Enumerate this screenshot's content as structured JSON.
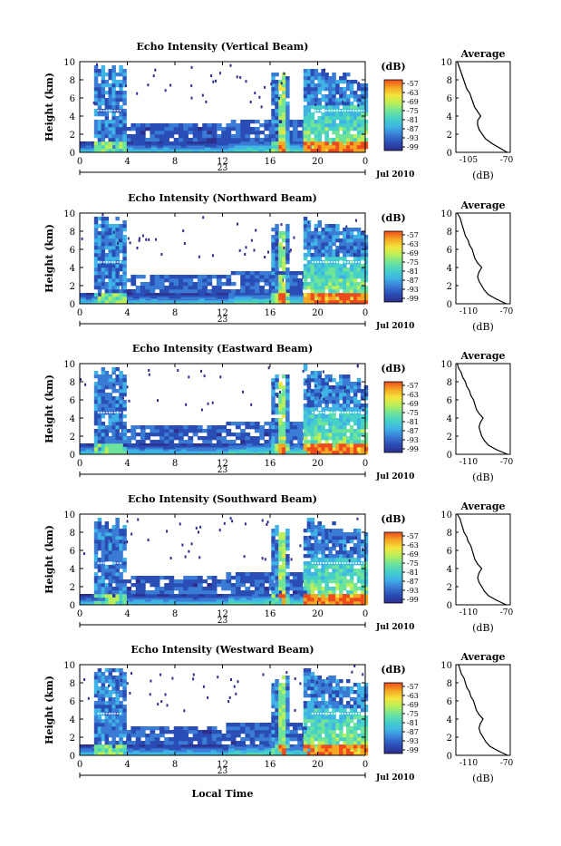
{
  "figure": {
    "month_year_label": "Jul 2010",
    "day_label": "23",
    "xlabel": "Local Time",
    "ylabel": "Height (km)",
    "average_title": "Average",
    "average_xlabel": "(dB)",
    "colorbar_label": "(dB)",
    "colorbar_ticks": [
      "-57",
      "-63",
      "-69",
      "-75",
      "-81",
      "-87",
      "-93",
      "-99"
    ],
    "colormap": [
      "#2e2e8c",
      "#2a4db5",
      "#3a7bd5",
      "#3fb3e6",
      "#46d0c8",
      "#6ee39a",
      "#b8ef5a",
      "#f4e43c",
      "#f5a623",
      "#ee4b1e"
    ]
  },
  "chart_data": [
    {
      "type": "heatmap",
      "title": "Echo Intensity (Vertical Beam)",
      "xlabel": "Local Time",
      "ylabel": "Height (km)",
      "xlim": [
        0,
        24
      ],
      "xticks": [
        "0",
        "4",
        "8",
        "12",
        "16",
        "20",
        "0"
      ],
      "ylim": [
        0,
        10
      ],
      "yticks": [
        "0",
        "2",
        "4",
        "6",
        "8",
        "10"
      ],
      "colorbar": {
        "label": "(dB)",
        "ticks": [
          -57,
          -63,
          -69,
          -75,
          -81,
          -87,
          -93,
          -99
        ]
      },
      "average_profile": {
        "title": "Average",
        "xlabel": "(dB)",
        "xlim": [
          -105,
          -70
        ],
        "xticks": [
          "-105",
          "-70"
        ],
        "height": [
          0,
          0.5,
          1,
          1.5,
          2,
          2.5,
          3,
          3.5,
          4,
          4.5,
          5,
          5.5,
          6,
          6.5,
          7,
          7.5,
          8,
          8.5,
          9,
          9.5,
          10
        ],
        "db": [
          -72,
          -77,
          -82,
          -86,
          -88,
          -90,
          -91,
          -91,
          -89,
          -91,
          -93,
          -94,
          -95,
          -96,
          -98,
          -99,
          -100,
          -101,
          -102,
          -103,
          -104
        ]
      }
    },
    {
      "type": "heatmap",
      "title": "Echo Intensity (Northward Beam)",
      "xlabel": "Local Time",
      "ylabel": "Height (km)",
      "xlim": [
        0,
        24
      ],
      "xticks": [
        "0",
        "4",
        "8",
        "12",
        "16",
        "20",
        "0"
      ],
      "ylim": [
        0,
        10
      ],
      "yticks": [
        "0",
        "2",
        "4",
        "6",
        "8",
        "10"
      ],
      "colorbar": {
        "label": "(dB)",
        "ticks": [
          -57,
          -63,
          -69,
          -75,
          -81,
          -87,
          -93,
          -99
        ]
      },
      "average_profile": {
        "title": "Average",
        "xlabel": "(dB)",
        "xlim": [
          -110,
          -70
        ],
        "xticks": [
          "-110",
          "-70"
        ],
        "height": [
          0,
          0.5,
          1,
          1.5,
          2,
          2.5,
          3,
          3.5,
          4,
          4.5,
          5,
          5.5,
          6,
          6.5,
          7,
          7.5,
          8,
          8.5,
          9,
          9.5,
          10
        ],
        "db": [
          -73,
          -80,
          -86,
          -89,
          -91,
          -93,
          -94,
          -93,
          -91,
          -94,
          -96,
          -97,
          -98,
          -100,
          -101,
          -103,
          -104,
          -105,
          -106,
          -107,
          -109
        ]
      }
    },
    {
      "type": "heatmap",
      "title": "Echo Intensity (Eastward Beam)",
      "xlabel": "Local Time",
      "ylabel": "Height (km)",
      "xlim": [
        0,
        24
      ],
      "xticks": [
        "0",
        "4",
        "8",
        "12",
        "16",
        "20",
        "0"
      ],
      "ylim": [
        0,
        10
      ],
      "yticks": [
        "0",
        "2",
        "4",
        "6",
        "8",
        "10"
      ],
      "colorbar": {
        "label": "(dB)",
        "ticks": [
          -57,
          -63,
          -69,
          -75,
          -81,
          -87,
          -93,
          -99
        ]
      },
      "average_profile": {
        "title": "Average",
        "xlabel": "(dB)",
        "xlim": [
          -110,
          -70
        ],
        "xticks": [
          "-110",
          "-70"
        ],
        "height": [
          0,
          0.5,
          1,
          1.5,
          2,
          2.5,
          3,
          3.5,
          4,
          4.5,
          5,
          5.5,
          6,
          6.5,
          7,
          7.5,
          8,
          8.5,
          9,
          9.5,
          10
        ],
        "db": [
          -72,
          -80,
          -86,
          -89,
          -91,
          -92,
          -93,
          -92,
          -90,
          -93,
          -95,
          -96,
          -97,
          -99,
          -100,
          -102,
          -103,
          -105,
          -106,
          -108,
          -109
        ]
      }
    },
    {
      "type": "heatmap",
      "title": "Echo Intensity (Southward Beam)",
      "xlabel": "Local Time",
      "ylabel": "Height (km)",
      "xlim": [
        0,
        24
      ],
      "xticks": [
        "0",
        "4",
        "8",
        "12",
        "16",
        "20",
        "0"
      ],
      "ylim": [
        0,
        10
      ],
      "yticks": [
        "0",
        "2",
        "4",
        "6",
        "8",
        "10"
      ],
      "colorbar": {
        "label": "(dB)",
        "ticks": [
          -57,
          -63,
          -69,
          -75,
          -81,
          -87,
          -93,
          -99
        ]
      },
      "average_profile": {
        "title": "Average",
        "xlabel": "(dB)",
        "xlim": [
          -110,
          -70
        ],
        "xticks": [
          "-110",
          "-70"
        ],
        "height": [
          0,
          0.5,
          1,
          1.5,
          2,
          2.5,
          3,
          3.5,
          4,
          4.5,
          5,
          5.5,
          6,
          6.5,
          7,
          7.5,
          8,
          8.5,
          9,
          9.5,
          10
        ],
        "db": [
          -73,
          -80,
          -86,
          -89,
          -91,
          -93,
          -94,
          -93,
          -91,
          -94,
          -96,
          -97,
          -98,
          -99,
          -101,
          -102,
          -104,
          -105,
          -106,
          -107,
          -109
        ]
      }
    },
    {
      "type": "heatmap",
      "title": "Echo Intensity (Westward Beam)",
      "xlabel": "Local Time",
      "ylabel": "Height (km)",
      "xlim": [
        0,
        24
      ],
      "xticks": [
        "0",
        "4",
        "8",
        "12",
        "16",
        "20",
        "0"
      ],
      "ylim": [
        0,
        10
      ],
      "yticks": [
        "0",
        "2",
        "4",
        "6",
        "8",
        "10"
      ],
      "colorbar": {
        "label": "(dB)",
        "ticks": [
          -57,
          -63,
          -69,
          -75,
          -81,
          -87,
          -93,
          -99
        ]
      },
      "average_profile": {
        "title": "Average",
        "xlabel": "(dB)",
        "xlim": [
          -110,
          -70
        ],
        "xticks": [
          "-110",
          "-70"
        ],
        "height": [
          0,
          0.5,
          1,
          1.5,
          2,
          2.5,
          3,
          3.5,
          4,
          4.5,
          5,
          5.5,
          6,
          6.5,
          7,
          7.5,
          8,
          8.5,
          9,
          9.5,
          10
        ],
        "db": [
          -72,
          -79,
          -85,
          -88,
          -90,
          -92,
          -93,
          -92,
          -90,
          -93,
          -95,
          -96,
          -97,
          -99,
          -100,
          -102,
          -103,
          -104,
          -106,
          -107,
          -108
        ]
      }
    }
  ]
}
